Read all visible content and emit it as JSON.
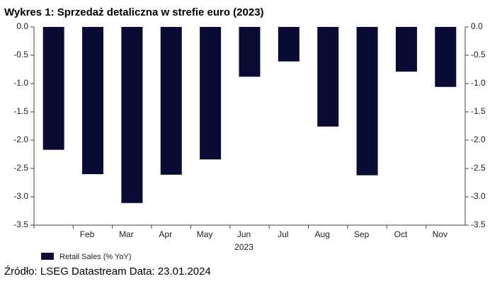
{
  "chart_data": {
    "type": "bar",
    "title": "Wykres 1: Sprzedaż detaliczna w strefie euro (2023)",
    "categories": [
      null,
      "Feb",
      "Mar",
      "Apr",
      "May",
      "Jun",
      "Jul",
      "Aug",
      "Sep",
      "Oct",
      "Nov"
    ],
    "x_label": "2023",
    "series": [
      {
        "name": "Retail Sales (% YoY)",
        "color": "#0b0c35",
        "values": [
          -2.17,
          -2.6,
          -3.11,
          -2.61,
          -2.34,
          -0.88,
          -0.61,
          -1.76,
          -2.62,
          -0.79,
          -1.06
        ]
      }
    ],
    "ylim": [
      0,
      -3.5
    ],
    "yticks": [
      {
        "value": 0,
        "label": "0.0"
      },
      {
        "value": -0.5,
        "label": "-0.5"
      },
      {
        "value": -1,
        "label": "-1.0"
      },
      {
        "value": -1.5,
        "label": "-1.5"
      },
      {
        "value": -2,
        "label": "-2.0"
      },
      {
        "value": -2.5,
        "label": "-2.5"
      },
      {
        "value": -3,
        "label": "-3.0"
      },
      {
        "value": -3.5,
        "label": "-3.5"
      }
    ],
    "right_axis": true,
    "grid": false,
    "legend": "bottom-left",
    "source": "Źródło: LSEG Datastream Data: 23.01.2024"
  }
}
